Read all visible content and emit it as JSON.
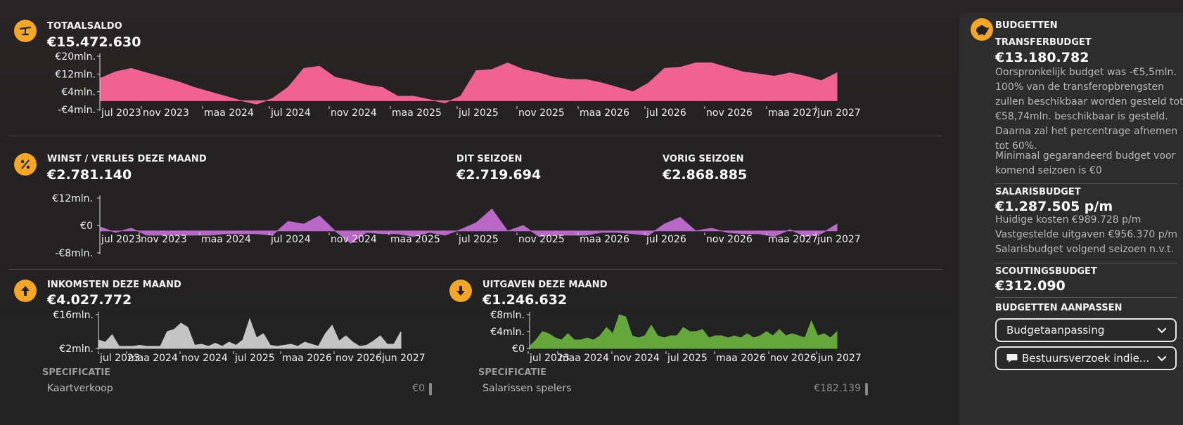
{
  "totaalsaldo": {
    "label": "TOTAALSALDO",
    "value": "€15.472.630",
    "icon": "scale-icon"
  },
  "winst": {
    "label": "WINST / VERLIES DEZE MAAND",
    "value": "€2.781.140",
    "dit_seizoen_label": "DIT SEIZOEN",
    "dit_seizoen_value": "€2.719.694",
    "vorig_seizoen_label": "VORIG SEIZOEN",
    "vorig_seizoen_value": "€2.868.885",
    "icon": "percent-icon"
  },
  "inkomsten": {
    "label": "INKOMSTEN DEZE MAAND",
    "value": "€4.027.772",
    "icon": "arrow-up-icon",
    "spec_title": "SPECIFICATIE",
    "spec_row_label": "Kaartverkoop",
    "spec_row_value": "€0"
  },
  "uitgaven": {
    "label": "UITGAVEN DEZE MAAND",
    "value": "€1.246.632",
    "icon": "arrow-down-icon",
    "spec_title": "SPECIFICATIE",
    "spec_row_label": "Salarissen spelers",
    "spec_row_value": "€182.139"
  },
  "budgetten": {
    "title": "BUDGETTEN",
    "icon": "piggy-bank-icon",
    "transfer_label": "TRANSFERBUDGET",
    "transfer_value": "€13.180.782",
    "transfer_text_1": "Oorspronkelijk budget was -€5,5mln.",
    "transfer_text_2": "100% van de transferopbrengsten zullen beschikbaar worden gesteld tot €58,74mln. beschikbaar is gesteld. Daarna zal het percentrage afnemen tot 60%.",
    "transfer_text_3": "Minimaal gegarandeerd budget voor komend seizoen is €0",
    "salaris_label": "SALARISBUDGET",
    "salaris_value": "€1.287.505 p/m",
    "salaris_line_1": "Huidige kosten €989.728 p/m",
    "salaris_line_2": "Vastgestelde uitgaven €956.370 p/m",
    "salaris_line_3": "Salarisbudget volgend seizoen n.v.t.",
    "scouting_label": "SCOUTINGSBUDGET",
    "scouting_value": "€312.090",
    "aanpassen_label": "BUDGETTEN AANPASSEN",
    "dropdown_1": "Budgetaanpassing",
    "dropdown_2": "Bestuursverzoek indie..."
  },
  "colors": {
    "accent": "#f5a623",
    "saldo": "#f06292",
    "winst": "#ba68c8",
    "inkomsten": "#c4c4c4",
    "uitgaven": "#64a83c"
  },
  "chart_data": [
    {
      "id": "saldo",
      "type": "area",
      "title": "TOTAALSALDO",
      "ylim": [
        -4,
        20
      ],
      "y_ticks": [
        "€20mln.",
        "€12mln.",
        "€4mln.",
        "-€4mln."
      ],
      "x_ticks": [
        "jul 2023",
        "nov 2023",
        "maa 2024",
        "jul 2024",
        "nov 2024",
        "maa 2025",
        "jul 2025",
        "nov 2025",
        "maa 2026",
        "jul 2026",
        "nov 2026",
        "maa 2027",
        "jun 2027"
      ],
      "values": [
        10,
        13,
        14.5,
        12.5,
        10.5,
        8.5,
        6,
        4,
        2,
        0,
        -1.5,
        1,
        6,
        14.5,
        15.5,
        10.5,
        9,
        7,
        6,
        2,
        2,
        0.5,
        -1,
        2,
        13.5,
        14,
        17,
        14,
        12.5,
        10.5,
        9.5,
        9.5,
        8,
        6,
        4,
        8,
        14.5,
        15,
        17,
        17,
        15,
        13,
        12,
        11,
        12.5,
        11,
        9,
        12.5
      ],
      "color": "#f06292"
    },
    {
      "id": "winst",
      "type": "area",
      "title": "WINST / VERLIES DEZE MAAND",
      "ylim": [
        -8,
        12
      ],
      "y_ticks": [
        "€12mln.",
        "€0",
        "-€8mln."
      ],
      "x_ticks": [
        "jul 2023",
        "nov 2023",
        "maa 2024",
        "jul 2024",
        "nov 2024",
        "maa 2025",
        "jul 2025",
        "nov 2025",
        "maa 2026",
        "jul 2026",
        "nov 2026",
        "maa 2027",
        "jun 2027"
      ],
      "values": [
        1.5,
        -0.5,
        1,
        -1.5,
        -1.5,
        -1.5,
        -1.5,
        -1.5,
        -1,
        -1,
        -1,
        -1.5,
        3.5,
        2.5,
        5.5,
        0,
        -4.5,
        -0.5,
        -1,
        -1,
        -2,
        -0.5,
        -1.5,
        0.5,
        3,
        8,
        0,
        2,
        -2,
        -1.5,
        -1.5,
        -1.5,
        -0.5,
        -0.5,
        -1,
        -1.5,
        2.5,
        5,
        0,
        1,
        -0.5,
        -1,
        -1,
        -2,
        0.5,
        -2,
        -1,
        2.5
      ],
      "color": "#ba68c8"
    },
    {
      "id": "inkomsten",
      "type": "area",
      "title": "INKOMSTEN DEZE MAAND",
      "ylim": [
        0,
        16
      ],
      "y_ticks": [
        "€16mln.",
        "€2mln."
      ],
      "x_ticks": [
        "jul 2023",
        "maa 2024",
        "nov 2024",
        "jul 2025",
        "maa 2026",
        "nov 2026",
        "jun 2027"
      ],
      "values": [
        4,
        3,
        6.5,
        1,
        1,
        1,
        1.5,
        1,
        1,
        1,
        8,
        9,
        12,
        10,
        1.5,
        2,
        1,
        2.5,
        1,
        3,
        1.5,
        4,
        14,
        5,
        7,
        1.5,
        1,
        1.5,
        2,
        1,
        3,
        2,
        1,
        7,
        11,
        3.5,
        6,
        3,
        1,
        1.5,
        3.5,
        6,
        2,
        2,
        8
      ],
      "color": "#c4c4c4"
    },
    {
      "id": "uitgaven",
      "type": "area",
      "title": "UITGAVEN DEZE MAAND",
      "ylim": [
        0,
        8
      ],
      "y_ticks": [
        "€8mln.",
        "€4mln.",
        "€0"
      ],
      "x_ticks": [
        "jul 2023",
        "maa 2024",
        "nov 2024",
        "jul 2025",
        "maa 2026",
        "nov 2026",
        "jun 2027"
      ],
      "values": [
        0.5,
        2,
        4,
        3.5,
        2.5,
        2,
        3.5,
        2,
        2,
        2.5,
        2,
        3,
        5,
        3.5,
        8,
        7.5,
        3,
        2.5,
        3,
        5.5,
        3,
        2.5,
        3,
        3,
        5,
        4,
        4,
        4.5,
        2.5,
        3,
        3,
        2.5,
        3,
        2.5,
        3.5,
        2.5,
        3,
        4,
        3,
        4.5,
        3,
        3.5,
        3,
        2.5,
        6.5,
        3,
        3.5,
        2.5,
        4
      ],
      "color": "#64a83c"
    }
  ]
}
